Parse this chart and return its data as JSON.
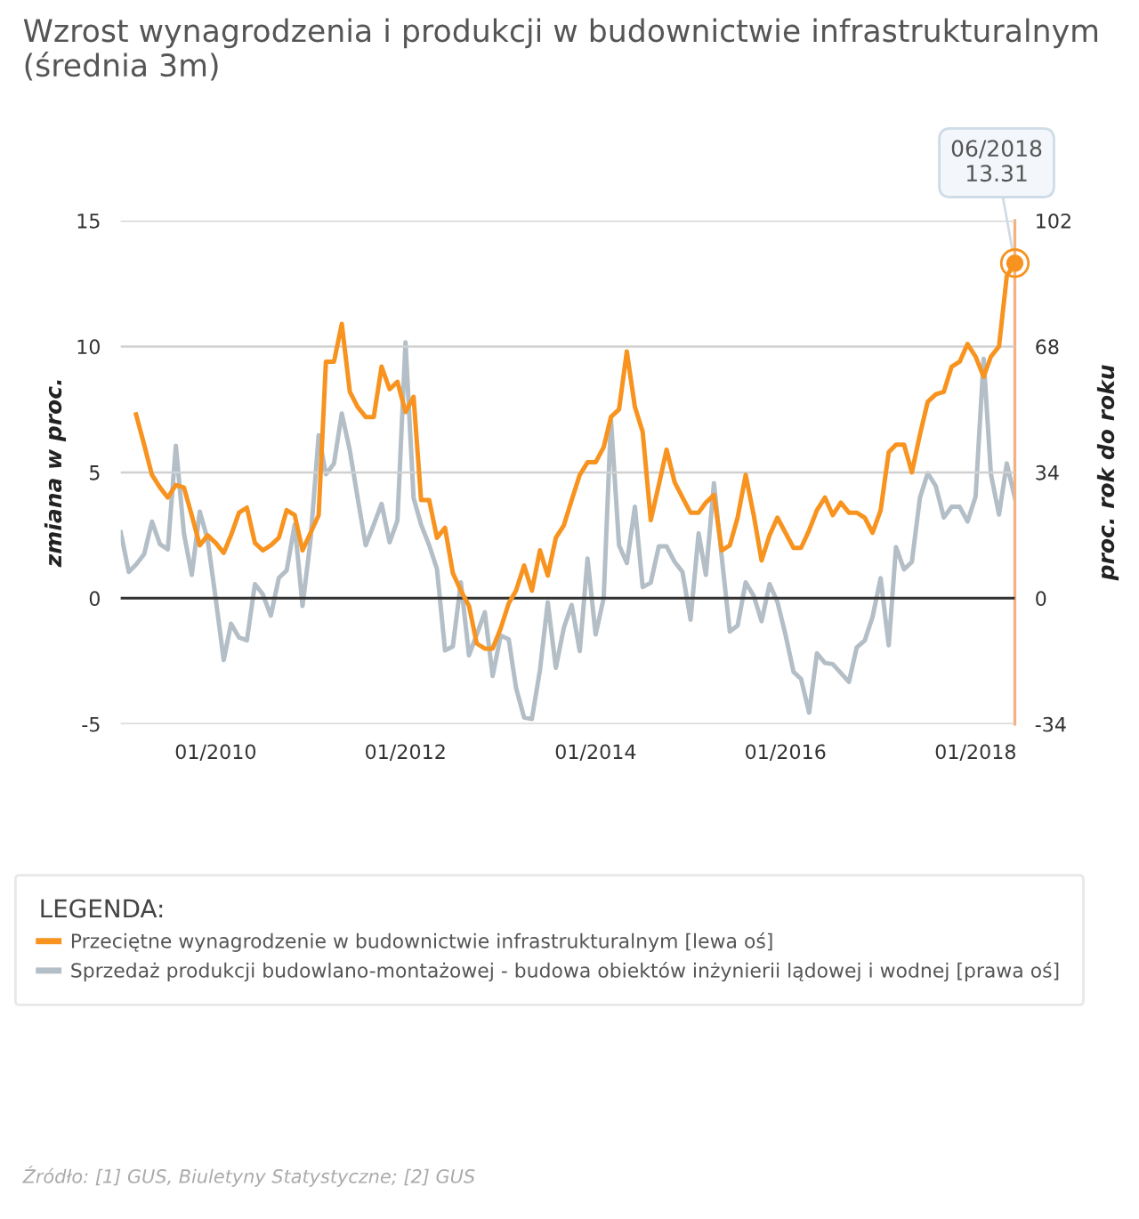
{
  "chart_data": {
    "type": "line",
    "title": "Wzrost wynagrodzenia i produkcji w budownictwie infrastrukturalnym (średnia 3m)",
    "ylabel": "zmiana w proc.",
    "y2label": "proc. rok do roku",
    "legend_title": "LEGENDA:",
    "xlim": [
      "2009-01",
      "2018-06"
    ],
    "xticks": [
      {
        "value": "2010-01",
        "label": "01/2010"
      },
      {
        "value": "2012-01",
        "label": "01/2012"
      },
      {
        "value": "2014-01",
        "label": "01/2014"
      },
      {
        "value": "2016-01",
        "label": "01/2016"
      },
      {
        "value": "2018-01",
        "label": "01/2018"
      }
    ],
    "ylim": [
      -5,
      15
    ],
    "yticks": [
      -5,
      0,
      5,
      10,
      15
    ],
    "y2lim": [
      -34,
      102
    ],
    "y2ticks": [
      -34,
      0,
      34,
      68,
      102
    ],
    "grid": "y",
    "legend": "bottom",
    "marker": "none",
    "line_style": "solid",
    "ref_lines": [
      {
        "axis": "y",
        "value": 0,
        "color": "#333333"
      }
    ],
    "series": [
      {
        "name": "Przeciętne wynagrodzenie w budownictwie infrastrukturalnym [lewa oś]",
        "color": "#f7931e",
        "x": [
          "2009-03",
          "2009-04",
          "2009-05",
          "2009-06",
          "2009-07",
          "2009-08",
          "2009-09",
          "2009-10",
          "2009-11",
          "2009-12",
          "2010-01",
          "2010-02",
          "2010-03",
          "2010-04",
          "2010-05",
          "2010-06",
          "2010-07",
          "2010-08",
          "2010-09",
          "2010-10",
          "2010-11",
          "2010-12",
          "2011-01",
          "2011-02",
          "2011-03",
          "2011-04",
          "2011-05",
          "2011-06",
          "2011-07",
          "2011-08",
          "2011-09",
          "2011-10",
          "2011-11",
          "2011-12",
          "2012-01",
          "2012-02",
          "2012-03",
          "2012-04",
          "2012-05",
          "2012-06",
          "2012-07",
          "2012-08",
          "2012-09",
          "2012-10",
          "2012-11",
          "2012-12",
          "2013-01",
          "2013-02",
          "2013-03",
          "2013-04",
          "2013-05",
          "2013-06",
          "2013-07",
          "2013-08",
          "2013-09",
          "2013-10",
          "2013-11",
          "2013-12",
          "2014-01",
          "2014-02",
          "2014-03",
          "2014-04",
          "2014-05",
          "2014-06",
          "2014-07",
          "2014-08",
          "2014-09",
          "2014-10",
          "2014-11",
          "2014-12",
          "2015-01",
          "2015-02",
          "2015-03",
          "2015-04",
          "2015-05",
          "2015-06",
          "2015-07",
          "2015-08",
          "2015-09",
          "2015-10",
          "2015-11",
          "2015-12",
          "2016-01",
          "2016-02",
          "2016-03",
          "2016-04",
          "2016-05",
          "2016-06",
          "2016-07",
          "2016-08",
          "2016-09",
          "2016-10",
          "2016-11",
          "2016-12",
          "2017-01",
          "2017-02",
          "2017-03",
          "2017-04",
          "2017-05",
          "2017-06",
          "2017-07",
          "2017-08",
          "2017-09",
          "2017-10",
          "2017-11",
          "2017-12",
          "2018-01",
          "2018-02",
          "2018-03",
          "2018-04",
          "2018-05",
          "2018-06"
        ],
        "values": [
          7.3,
          6.1,
          4.9,
          4.4,
          4.0,
          4.5,
          4.4,
          3.3,
          2.1,
          2.5,
          2.2,
          1.8,
          2.5,
          3.4,
          3.6,
          2.2,
          1.9,
          2.1,
          2.4,
          3.5,
          3.3,
          1.9,
          2.6,
          3.3,
          9.4,
          9.4,
          10.9,
          8.2,
          7.6,
          7.2,
          7.2,
          9.2,
          8.3,
          8.6,
          7.4,
          8.0,
          3.9,
          3.9,
          2.4,
          2.8,
          1.0,
          0.3,
          -0.3,
          -1.8,
          -2.0,
          -2.0,
          -1.2,
          -0.2,
          0.3,
          1.3,
          0.3,
          1.9,
          0.9,
          2.4,
          2.9,
          3.9,
          4.9,
          5.4,
          5.4,
          6.0,
          7.2,
          7.5,
          9.8,
          7.6,
          6.6,
          3.1,
          4.5,
          5.9,
          4.6,
          4.0,
          3.4,
          3.4,
          3.8,
          4.1,
          1.9,
          2.1,
          3.2,
          4.9,
          3.3,
          1.5,
          2.5,
          3.2,
          2.6,
          2.0,
          2.0,
          2.7,
          3.5,
          4.0,
          3.3,
          3.8,
          3.4,
          3.4,
          3.2,
          2.6,
          3.5,
          5.8,
          6.1,
          6.1,
          5.0,
          6.5,
          7.8,
          8.1,
          8.2,
          9.2,
          9.4,
          10.1,
          9.6,
          8.8,
          9.6,
          10.0,
          12.8,
          13.31
        ]
      },
      {
        "name": "Sprzedaż produkcji budowlano-montażowej - budowa obiektów inżynierii lądowej i wodnej [prawa oś]",
        "color": "#b3bec6",
        "axis": "y2",
        "x": [
          "2009-01",
          "2009-02",
          "2009-03",
          "2009-04",
          "2009-05",
          "2009-06",
          "2009-07",
          "2009-08",
          "2009-09",
          "2009-10",
          "2009-11",
          "2009-12",
          "2010-01",
          "2010-02",
          "2010-03",
          "2010-04",
          "2010-05",
          "2010-06",
          "2010-07",
          "2010-08",
          "2010-09",
          "2010-10",
          "2010-11",
          "2010-12",
          "2011-01",
          "2011-02",
          "2011-03",
          "2011-04",
          "2011-05",
          "2011-06",
          "2011-07",
          "2011-08",
          "2011-09",
          "2011-10",
          "2011-11",
          "2011-12",
          "2012-01",
          "2012-02",
          "2012-03",
          "2012-04",
          "2012-05",
          "2012-06",
          "2012-07",
          "2012-08",
          "2012-09",
          "2012-10",
          "2012-11",
          "2012-12",
          "2013-01",
          "2013-02",
          "2013-03",
          "2013-04",
          "2013-05",
          "2013-06",
          "2013-07",
          "2013-08",
          "2013-09",
          "2013-10",
          "2013-11",
          "2013-12",
          "2014-01",
          "2014-02",
          "2014-03",
          "2014-04",
          "2014-05",
          "2014-06",
          "2014-07",
          "2014-08",
          "2014-09",
          "2014-10",
          "2014-11",
          "2014-12",
          "2015-01",
          "2015-02",
          "2015-03",
          "2015-04",
          "2015-05",
          "2015-06",
          "2015-07",
          "2015-08",
          "2015-09",
          "2015-10",
          "2015-11",
          "2015-12",
          "2016-01",
          "2016-02",
          "2016-03",
          "2016-04",
          "2016-05",
          "2016-06",
          "2016-07",
          "2016-08",
          "2016-09",
          "2016-10",
          "2016-11",
          "2016-12",
          "2017-01",
          "2017-02",
          "2017-03",
          "2017-04",
          "2017-05",
          "2017-06",
          "2017-07",
          "2017-08",
          "2017-09",
          "2017-10",
          "2017-11",
          "2017-12",
          "2018-01",
          "2018-02",
          "2018-03",
          "2018-04",
          "2018-05",
          "2018-06"
        ],
        "values": [
          17.8,
          7.1,
          9.1,
          11.9,
          20.7,
          14.6,
          13.2,
          41.2,
          17.5,
          6.3,
          23.4,
          15.9,
          0,
          -16.7,
          -6.9,
          -10.6,
          -11.4,
          3.8,
          1.1,
          -4.7,
          5.5,
          7.5,
          19.9,
          -2.1,
          15.9,
          44.0,
          33.5,
          36.4,
          49.9,
          39.9,
          27.1,
          14.3,
          19.9,
          25.5,
          15.1,
          21.0,
          69.1,
          27.1,
          19.9,
          14.3,
          7.9,
          -14.1,
          -13.0,
          4.3,
          -15.4,
          -9.8,
          -3.8,
          -21.0,
          -10.1,
          -11.1,
          -24.2,
          -32.2,
          -32.6,
          -19.4,
          -1.1,
          -18.8,
          -7.9,
          -1.8,
          -14.3,
          10.7,
          -9.8,
          0,
          48.3,
          14.3,
          9.5,
          24.7,
          3.0,
          4.2,
          14.0,
          14.0,
          9.8,
          7.1,
          -5.8,
          17.5,
          6.3,
          31.1,
          11.1,
          -9.0,
          -7.4,
          4.3,
          0.6,
          -6.2,
          3.8,
          -1.0,
          -9.8,
          -19.9,
          -21.8,
          -30.9,
          -14.9,
          -17.5,
          -17.8,
          -20.2,
          -22.6,
          -13.3,
          -11.4,
          -5.0,
          5.4,
          -12.7,
          13.8,
          7.8,
          9.8,
          27.1,
          33.8,
          30.3,
          21.8,
          24.7,
          24.7,
          20.7,
          27.4,
          64.7,
          33.5,
          22.6,
          36.4,
          27.1
        ]
      }
    ],
    "annotations": [
      {
        "text": "06/2018\n13.31",
        "x": "2018-06",
        "y": 13.31
      },
      "Źródło: [1] GUS, Biuletyny Statystyczne; [2] GUS"
    ]
  }
}
